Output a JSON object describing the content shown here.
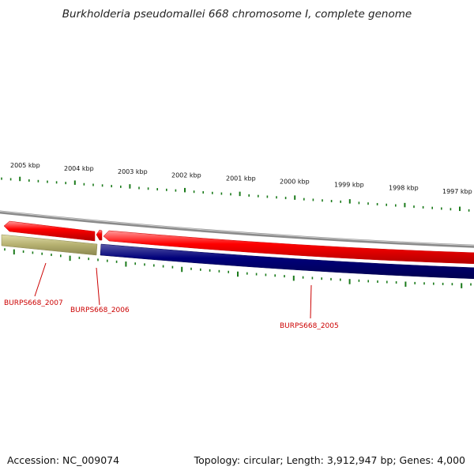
{
  "title": "Burkholderia pseudomallei 668 chromosome I, complete genome",
  "accession": "Accession: NC_009074",
  "summary": "Topology: circular; Length: 3,912,947 bp; Genes: 4,000",
  "kbp_labels": [
    "2005 kbp",
    "2004 kbp",
    "2003 kbp",
    "2002 kbp",
    "2001 kbp",
    "2000 kbp",
    "1999 kbp",
    "1998 kbp",
    "1997 kbp"
  ],
  "genes": [
    {
      "name": "BURPS668_2007",
      "strand": "reverse"
    },
    {
      "name": "BURPS668_2006",
      "strand": "reverse"
    },
    {
      "name": "BURPS668_2005",
      "strand": "reverse"
    }
  ],
  "colors": {
    "forward_track": "#ff0000",
    "reverse_track_main": "#000080",
    "reverse_track_side": "#b5b070",
    "backbone": "#8a8a8a",
    "ticks": "#1a7a1a",
    "gene_label": "#cc0000"
  }
}
